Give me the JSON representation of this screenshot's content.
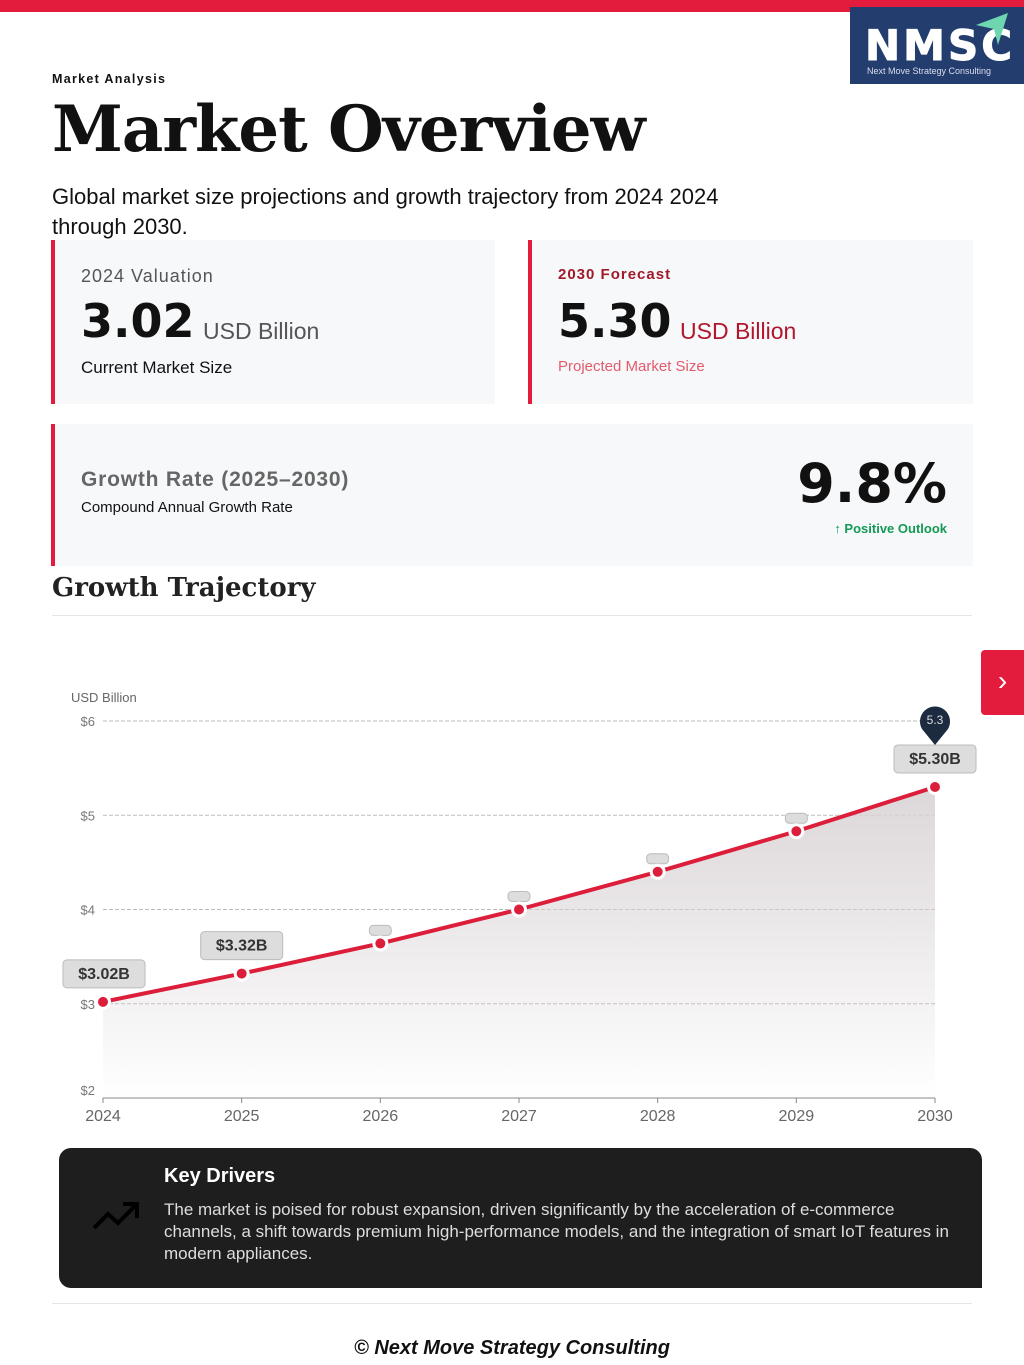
{
  "header": {
    "eyebrow": "Market Analysis",
    "title": "Market Overview",
    "subtitle": "Global market size projections and growth trajectory from 2024 2024 through 2030.",
    "logo_text": "NMSC",
    "logo_tagline": "Next Move Strategy Consulting"
  },
  "cards": {
    "valuation": {
      "label": "2024 Valuation",
      "value": "3.02",
      "unit": "USD Billion",
      "desc": "Current Market Size"
    },
    "forecast": {
      "label": "2030 Forecast",
      "value": "5.30",
      "unit": "USD Billion",
      "desc": "Projected Market Size"
    },
    "growth": {
      "label": "Growth Rate (2025–2030)",
      "desc": "Compound Annual Growth Rate",
      "value": "9.8%",
      "outlook": "↑ Positive Outlook"
    }
  },
  "section_title": "Growth Trajectory",
  "chart_data": {
    "type": "line",
    "ylabel": "USD Billion",
    "ylim": [
      2,
      6
    ],
    "yticks": [
      "$2",
      "$3",
      "$4",
      "$5",
      "$6"
    ],
    "categories": [
      "2024",
      "2025",
      "2026",
      "2027",
      "2028",
      "2029",
      "2030"
    ],
    "values": [
      3.02,
      3.32,
      3.64,
      4.0,
      4.4,
      4.83,
      5.3
    ],
    "data_labels": [
      "$3.02B",
      "$3.32B",
      "",
      "",
      "",
      "",
      "$5.30B"
    ],
    "tooltip": "5.3",
    "grid": true,
    "colors": {
      "line": "#dc1e3a",
      "area": "#d8d2d4"
    }
  },
  "drivers": {
    "title": "Key Drivers",
    "text": "The market is poised for robust expansion, driven significantly by the acceleration of e-commerce channels, a shift towards premium high-performance models, and the integration of smart IoT features in modern appliances."
  },
  "footer": "© Next Move Strategy Consulting"
}
